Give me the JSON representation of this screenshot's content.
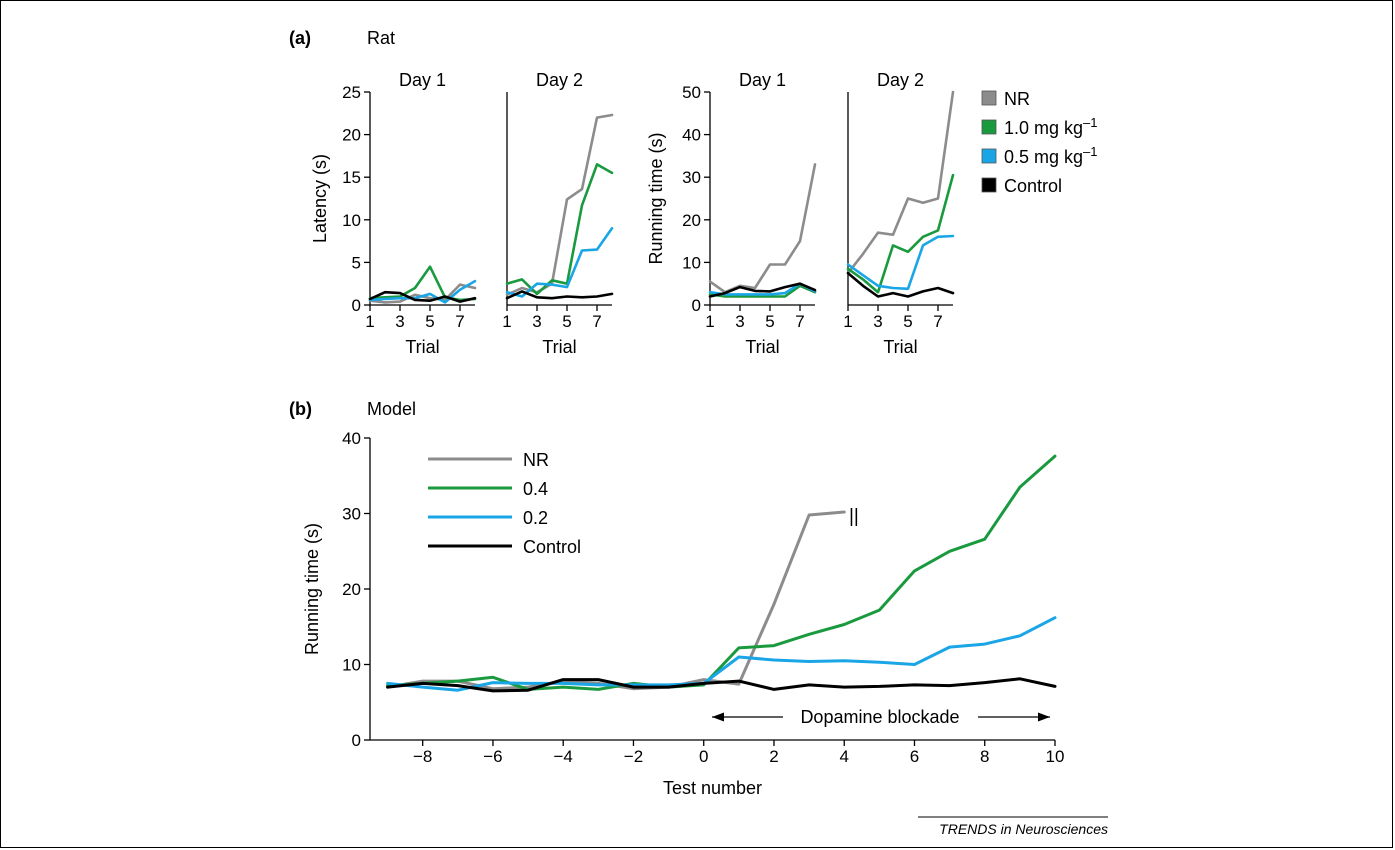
{
  "panels": {
    "a_label": "(a)",
    "a_title": "Rat",
    "b_label": "(b)",
    "b_title": "Model"
  },
  "colors": {
    "NR": "#8c8c8c",
    "1.0 mg kg-1": "#1a9a3f",
    "0.5 mg kg-1": "#1aa6e6",
    "Control": "#000000"
  },
  "legend_a": [
    {
      "key": "NR",
      "text": "NR",
      "sup": ""
    },
    {
      "key": "1.0 mg kg-1",
      "text": "1.0 mg kg",
      "sup": "–1"
    },
    {
      "key": "0.5 mg kg-1",
      "text": "0.5 mg kg",
      "sup": "–1"
    },
    {
      "key": "Control",
      "text": "Control",
      "sup": ""
    }
  ],
  "legend_b": [
    {
      "key": "NR",
      "text": "NR"
    },
    {
      "key": "1.0 mg kg-1",
      "text": "0.4"
    },
    {
      "key": "0.5 mg kg-1",
      "text": "0.2"
    },
    {
      "key": "Control",
      "text": "Control"
    }
  ],
  "annotation_b": "Dopamine blockade",
  "break_mark": "||",
  "credit": "TRENDS in Neurosciences",
  "chart_data": [
    {
      "type": "line",
      "title": "Day 1",
      "xlabel": "Trial",
      "ylabel": "Latency (s)",
      "xlim": [
        1,
        8
      ],
      "ylim": [
        0,
        25
      ],
      "xticks": [
        1,
        3,
        5,
        7
      ],
      "yticks": [
        0,
        5,
        10,
        15,
        20,
        25
      ],
      "x": [
        1,
        2,
        3,
        4,
        5,
        6,
        7,
        8
      ],
      "series": [
        {
          "name": "NR",
          "values": [
            0.5,
            0.3,
            0.4,
            1.2,
            0.8,
            0.6,
            2.4,
            2.0
          ]
        },
        {
          "name": "1.0 mg kg-1",
          "values": [
            0.8,
            0.9,
            1.0,
            2.0,
            4.5,
            0.9,
            0.6,
            0.7
          ]
        },
        {
          "name": "0.5 mg kg-1",
          "values": [
            0.6,
            0.7,
            0.8,
            0.8,
            1.3,
            0.3,
            1.8,
            2.8
          ]
        },
        {
          "name": "Control",
          "values": [
            0.7,
            1.5,
            1.4,
            0.6,
            0.5,
            1.0,
            0.4,
            0.8
          ]
        }
      ]
    },
    {
      "type": "line",
      "title": "Day 2",
      "xlabel": "Trial",
      "ylabel": "",
      "xlim": [
        1,
        8
      ],
      "ylim": [
        0,
        25
      ],
      "xticks": [
        1,
        3,
        5,
        7
      ],
      "yticks": [],
      "x": [
        1,
        2,
        3,
        4,
        5,
        6,
        7,
        8
      ],
      "series": [
        {
          "name": "NR",
          "values": [
            1.2,
            2.0,
            1.5,
            2.5,
            12.4,
            13.6,
            22.0,
            22.3
          ]
        },
        {
          "name": "1.0 mg kg-1",
          "values": [
            2.5,
            3.0,
            1.3,
            2.9,
            2.5,
            11.7,
            16.5,
            15.5
          ]
        },
        {
          "name": "0.5 mg kg-1",
          "values": [
            1.5,
            1.0,
            2.5,
            2.4,
            2.1,
            6.4,
            6.5,
            9.0
          ]
        },
        {
          "name": "Control",
          "values": [
            0.8,
            1.6,
            0.9,
            0.8,
            1.0,
            0.9,
            1.0,
            1.3
          ]
        }
      ]
    },
    {
      "type": "line",
      "title": "Day 1",
      "xlabel": "Trial",
      "ylabel": "Running time (s)",
      "xlim": [
        1,
        8
      ],
      "ylim": [
        0,
        50
      ],
      "xticks": [
        1,
        3,
        5,
        7
      ],
      "yticks": [
        0,
        10,
        20,
        30,
        40,
        50
      ],
      "x": [
        1,
        2,
        3,
        4,
        5,
        6,
        7,
        8
      ],
      "series": [
        {
          "name": "NR",
          "values": [
            5.5,
            3.0,
            4.5,
            4.0,
            9.5,
            9.5,
            15.0,
            33.0
          ]
        },
        {
          "name": "1.0 mg kg-1",
          "values": [
            2.5,
            2.0,
            2.0,
            2.0,
            2.0,
            2.0,
            4.5,
            3.0
          ]
        },
        {
          "name": "0.5 mg kg-1",
          "values": [
            3.0,
            2.5,
            2.5,
            2.5,
            2.5,
            2.8,
            5.0,
            3.2
          ]
        },
        {
          "name": "Control",
          "values": [
            2.0,
            2.8,
            4.2,
            3.3,
            3.2,
            4.2,
            5.0,
            3.5
          ]
        }
      ]
    },
    {
      "type": "line",
      "title": "Day 2",
      "xlabel": "Trial",
      "ylabel": "",
      "xlim": [
        1,
        8
      ],
      "ylim": [
        0,
        50
      ],
      "xticks": [
        1,
        3,
        5,
        7
      ],
      "yticks": [],
      "x": [
        1,
        2,
        3,
        4,
        5,
        6,
        7,
        8
      ],
      "series": [
        {
          "name": "NR",
          "values": [
            7.5,
            12.0,
            17.0,
            16.5,
            25.0,
            24.0,
            25.0,
            50.0
          ]
        },
        {
          "name": "1.0 mg kg-1",
          "values": [
            8.5,
            6.0,
            3.0,
            14.0,
            12.5,
            16.0,
            17.5,
            30.5
          ]
        },
        {
          "name": "0.5 mg kg-1",
          "values": [
            9.5,
            7.0,
            4.5,
            4.0,
            3.8,
            14.0,
            16.0,
            16.2
          ]
        },
        {
          "name": "Control",
          "values": [
            7.5,
            4.5,
            2.0,
            2.8,
            2.0,
            3.2,
            4.0,
            2.8
          ]
        }
      ]
    },
    {
      "type": "line",
      "title": "",
      "xlabel": "Test number",
      "ylabel": "Running time (s)",
      "xlim": [
        -9.5,
        10
      ],
      "ylim": [
        0,
        40
      ],
      "xticks": [
        -8,
        -6,
        -4,
        -2,
        0,
        2,
        4,
        6,
        8,
        10
      ],
      "yticks": [
        0,
        10,
        20,
        30,
        40
      ],
      "series": [
        {
          "name": "NR",
          "x": [
            -9,
            -8,
            -7,
            -6,
            -5,
            -4,
            -3,
            -2,
            -1,
            0,
            1,
            2,
            3,
            4
          ],
          "values": [
            7.0,
            7.8,
            7.8,
            6.8,
            7.0,
            7.8,
            7.5,
            6.8,
            7.0,
            8.0,
            7.4,
            18.0,
            29.8,
            30.2
          ]
        },
        {
          "name": "0.4",
          "x": [
            -9,
            -8,
            -7,
            -6,
            -5,
            -4,
            -3,
            -2,
            -1,
            0,
            1,
            2,
            3,
            4,
            5,
            6,
            7,
            8,
            9,
            10
          ],
          "values": [
            7.2,
            7.5,
            7.8,
            8.3,
            6.7,
            7.0,
            6.7,
            7.5,
            7.0,
            7.3,
            12.2,
            12.5,
            14.0,
            15.3,
            17.2,
            22.4,
            25.0,
            26.6,
            33.5,
            37.6
          ]
        },
        {
          "name": "0.2",
          "x": [
            -9,
            -8,
            -7,
            -6,
            -5,
            -4,
            -3,
            -2,
            -1,
            0,
            1,
            2,
            3,
            4,
            5,
            6,
            7,
            8,
            9,
            10
          ],
          "values": [
            7.5,
            7.0,
            6.6,
            7.6,
            7.5,
            7.5,
            7.3,
            7.3,
            7.3,
            7.5,
            11.0,
            10.6,
            10.4,
            10.5,
            10.3,
            10.0,
            12.3,
            12.7,
            13.8,
            16.2
          ]
        },
        {
          "name": "Control",
          "x": [
            -9,
            -8,
            -7,
            -6,
            -5,
            -4,
            -3,
            -2,
            -1,
            0,
            1,
            2,
            3,
            4,
            5,
            6,
            7,
            8,
            9,
            10
          ],
          "values": [
            7.0,
            7.5,
            7.2,
            6.5,
            6.6,
            8.0,
            8.0,
            7.0,
            7.0,
            7.5,
            7.8,
            6.7,
            7.3,
            7.0,
            7.1,
            7.3,
            7.2,
            7.6,
            8.1,
            7.1
          ]
        }
      ]
    }
  ]
}
